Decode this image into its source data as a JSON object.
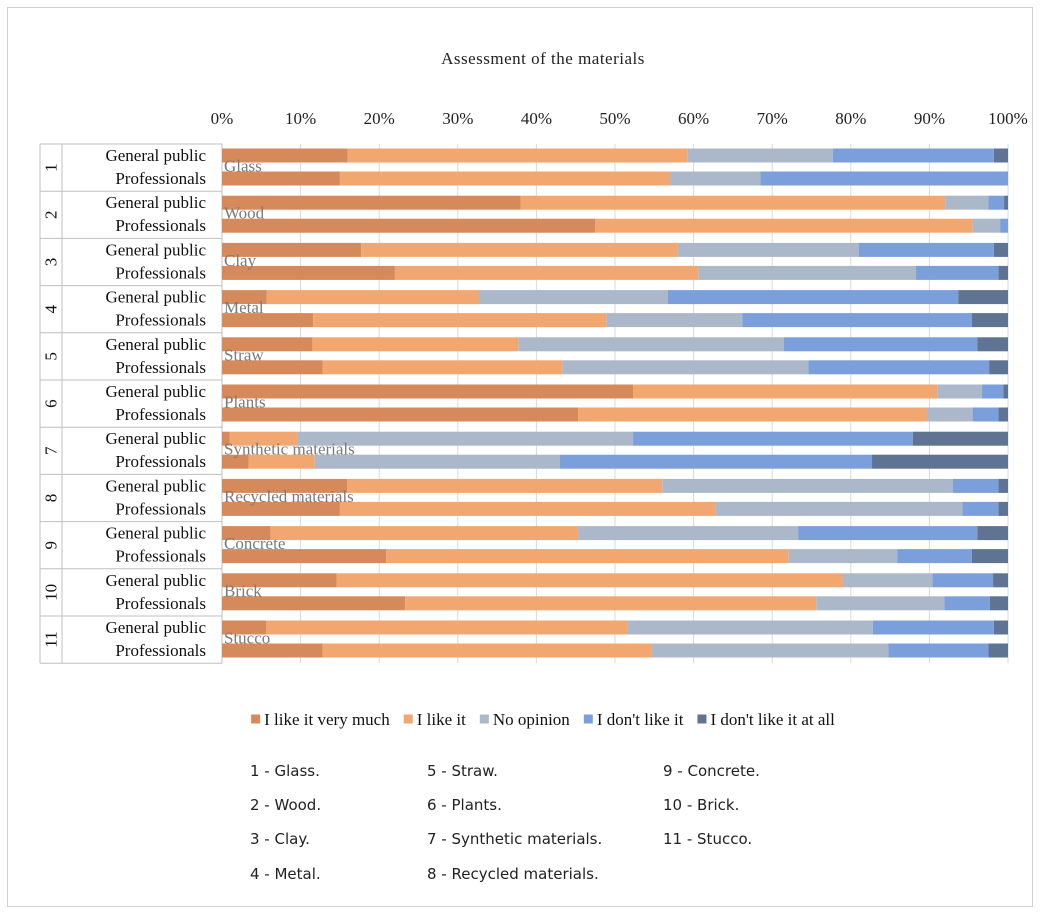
{
  "chart_data": {
    "type": "bar",
    "orientation": "horizontal-stacked-100",
    "title": "Assessment of the materials",
    "x_ticks": [
      "0%",
      "10%",
      "20%",
      "30%",
      "40%",
      "50%",
      "60%",
      "70%",
      "80%",
      "90%",
      "100%"
    ],
    "xlim": [
      0,
      100
    ],
    "grid": true,
    "legend_position": "bottom",
    "series": [
      {
        "name": "I like it very much",
        "color": "#d6895a"
      },
      {
        "name": "I like it",
        "color": "#f1a76f"
      },
      {
        "name": "No opinion",
        "color": "#abb8c9"
      },
      {
        "name": "I don't like it",
        "color": "#7b9fdb"
      },
      {
        "name": "I don't like it at all",
        "color": "#5f7393"
      }
    ],
    "row_labels": [
      "General public",
      "Professionals"
    ],
    "groups": [
      {
        "number": "1",
        "material": "Glass",
        "rows": [
          [
            16,
            43.2,
            18.5,
            20.5,
            1.8
          ],
          [
            15,
            42,
            11.5,
            31.5,
            0
          ]
        ]
      },
      {
        "number": "2",
        "material": "Wood",
        "rows": [
          [
            38,
            54,
            5.5,
            2,
            0.5
          ],
          [
            47.5,
            48,
            3.5,
            1,
            0
          ]
        ]
      },
      {
        "number": "3",
        "material": "Clay",
        "rows": [
          [
            17.7,
            40.3,
            23,
            17.2,
            1.8
          ],
          [
            22,
            38.6,
            27.7,
            10.5,
            1.2
          ]
        ]
      },
      {
        "number": "4",
        "material": "Metal",
        "rows": [
          [
            5.7,
            27,
            24,
            37,
            6.3
          ],
          [
            11.6,
            37.3,
            17.3,
            29.2,
            4.6
          ]
        ]
      },
      {
        "number": "5",
        "material": "Straw",
        "rows": [
          [
            11.5,
            26.2,
            33.8,
            24.6,
            3.9
          ],
          [
            12.8,
            30.5,
            31.3,
            23,
            2.4
          ]
        ]
      },
      {
        "number": "6",
        "material": "Plants",
        "rows": [
          [
            52.3,
            38.7,
            5.7,
            2.7,
            0.6
          ],
          [
            45.3,
            44.4,
            5.8,
            3.3,
            1.2
          ]
        ]
      },
      {
        "number": "7",
        "material": "Synthetic materials",
        "rows": [
          [
            1,
            8.6,
            42.7,
            35.6,
            12.1
          ],
          [
            3.4,
            8.4,
            31.2,
            39.7,
            17.3
          ]
        ]
      },
      {
        "number": "8",
        "material": "Recycled materials",
        "rows": [
          [
            15.9,
            40.1,
            37,
            5.8,
            1.2
          ],
          [
            15,
            47.8,
            31.4,
            4.6,
            1.2
          ]
        ]
      },
      {
        "number": "9",
        "material": "Concrete",
        "rows": [
          [
            6.2,
            39.1,
            28,
            22.8,
            3.9
          ],
          [
            20.9,
            51.2,
            13.8,
            9.5,
            4.6
          ]
        ]
      },
      {
        "number": "10",
        "material": "Brick",
        "rows": [
          [
            14.6,
            64.4,
            11.4,
            7.7,
            1.9
          ],
          [
            23.3,
            52.3,
            16.3,
            5.8,
            2.3
          ]
        ]
      },
      {
        "number": "11",
        "material": "Stucco",
        "rows": [
          [
            5.6,
            46,
            31.2,
            15.4,
            1.8
          ],
          [
            12.8,
            41.9,
            30.1,
            12.7,
            2.5
          ]
        ]
      }
    ]
  },
  "key_list": {
    "columns": [
      [
        "1 - Glass.",
        "2 - Wood.",
        "3 - Clay.",
        "4 - Metal."
      ],
      [
        "5 - Straw.",
        "6 - Plants.",
        "7 - Synthetic materials.",
        "8 - Recycled materials."
      ],
      [
        "9 - Concrete.",
        "10 - Brick.",
        "11 - Stucco."
      ]
    ]
  }
}
